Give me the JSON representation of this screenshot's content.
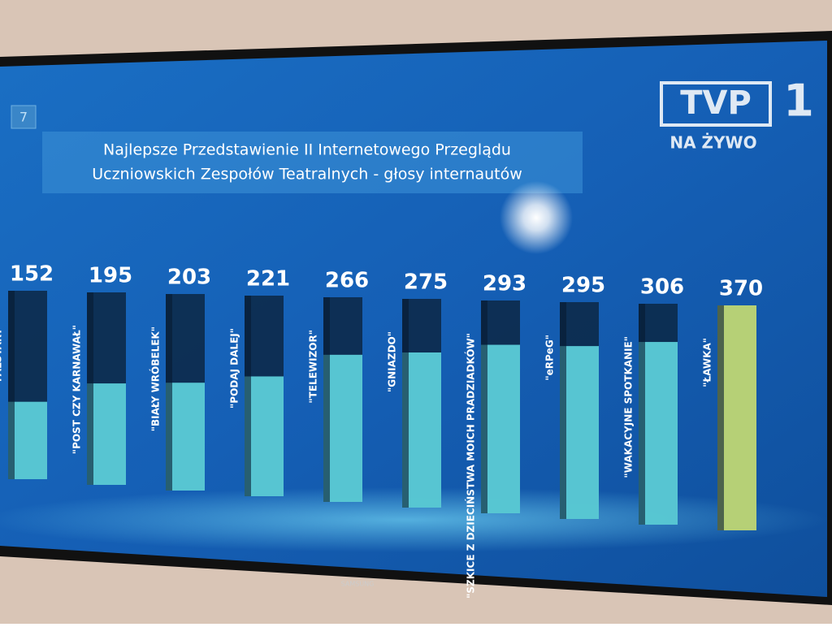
{
  "channel_number": "7",
  "logo": {
    "name": "TVP",
    "number": "1",
    "status": "NA ŻYWO"
  },
  "tv_brand": "SAMSUNG",
  "chart_data": {
    "type": "bar",
    "title": [
      "Najlepsze Przedstawienie II Internetowego Przeglądu",
      "Uczniowskich Zespołów Teatralnych - głosy internautów"
    ],
    "categories": [
      "\"FALSTART\"",
      "\"POST CZY KARNAWAŁ\"",
      "\"BIAŁY WRÓBELEK\"",
      "\"PODAJ DALEJ\"",
      "\"TELEWIZOR\"",
      "\"GNIAZDO\"",
      "\"SZKICE Z DZIECIŃSTWA MOICH PRADZIADKÓW\"",
      "\"eRPeG\"",
      "\"WAKACYJNE  SPOTKANIE\"",
      "\"ŁAWKA\""
    ],
    "values": [
      152,
      195,
      203,
      221,
      266,
      275,
      293,
      295,
      306,
      370
    ],
    "colors": [
      "#5fd6e0",
      "#5fd6e0",
      "#5fd6e0",
      "#5fd6e0",
      "#5fd6e0",
      "#5fd6e0",
      "#5fd6e0",
      "#5fd6e0",
      "#5fd6e0",
      "#c9e27a"
    ]
  }
}
